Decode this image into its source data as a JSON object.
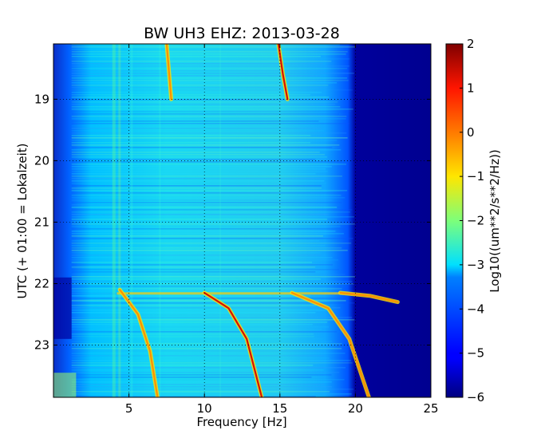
{
  "chart_data": {
    "type": "heatmap",
    "title": "BW UH3 EHZ: 2013-03-28",
    "xlabel": "Frequency [Hz]",
    "ylabel": "UTC (+ 01:00 = Lokalzeit)",
    "xlim": [
      0,
      25
    ],
    "ylim_hours": [
      18.1,
      23.85
    ],
    "y_inverted": true,
    "x_ticks": [
      5,
      10,
      15,
      20,
      25
    ],
    "x_tick_labels": [
      "5",
      "10",
      "15",
      "20",
      "25"
    ],
    "y_ticks": [
      19,
      20,
      21,
      22,
      23
    ],
    "y_tick_labels": [
      "19",
      "20",
      "21",
      "22",
      "23"
    ],
    "grid": true,
    "colormap": "jet",
    "colorbar": {
      "label": "Log10((um**2/s**2/Hz))",
      "range": [
        -6,
        2
      ],
      "ticks": [
        2,
        1,
        0,
        -1,
        -2,
        -3,
        -4,
        -5,
        -6
      ],
      "tick_labels": [
        "2",
        "1",
        "0",
        "−1",
        "−2",
        "−3",
        "−4",
        "−5",
        "−6"
      ]
    },
    "features": [
      {
        "kind": "tonal_line",
        "points": [
          [
            7.5,
            18.1
          ],
          [
            7.7,
            18.7
          ],
          [
            7.8,
            19.0
          ]
        ]
      },
      {
        "kind": "tonal_line",
        "points": [
          [
            14.9,
            18.1
          ],
          [
            15.2,
            18.6
          ],
          [
            15.5,
            19.0
          ]
        ]
      },
      {
        "kind": "tonal_line",
        "points": [
          [
            4.4,
            22.1
          ],
          [
            5.6,
            22.5
          ],
          [
            6.4,
            23.1
          ],
          [
            6.9,
            23.85
          ]
        ]
      },
      {
        "kind": "tonal_line",
        "points": [
          [
            10.0,
            22.15
          ],
          [
            11.6,
            22.4
          ],
          [
            12.8,
            22.9
          ],
          [
            13.8,
            23.85
          ]
        ]
      },
      {
        "kind": "tonal_line",
        "points": [
          [
            15.8,
            22.15
          ],
          [
            18.2,
            22.4
          ],
          [
            19.6,
            22.9
          ],
          [
            20.9,
            23.85
          ]
        ]
      },
      {
        "kind": "tonal_line",
        "points": [
          [
            19.0,
            22.15
          ],
          [
            21.0,
            22.2
          ],
          [
            22.8,
            22.3
          ]
        ]
      }
    ]
  }
}
